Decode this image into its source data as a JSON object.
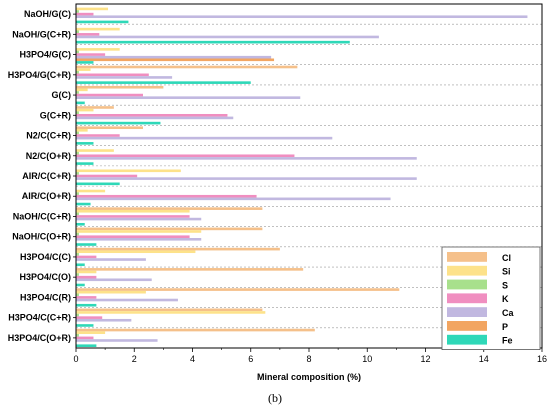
{
  "chart_data": {
    "type": "bar",
    "orientation": "horizontal",
    "xlabel": "Mineral composition (%)",
    "caption": "(b)",
    "xlim": [
      0,
      16
    ],
    "xticks": [
      0,
      2,
      4,
      6,
      8,
      10,
      12,
      14,
      16
    ],
    "grid": "horizontal-dashed",
    "legend_position": "bottom-right",
    "categories": [
      "NaOH/G(C)",
      "NaOH/G(C+R)",
      "H3PO4/G(C)",
      "H3PO4/G(C+R)",
      "G(C)",
      "G(C+R)",
      "N2/C(C+R)",
      "N2/C(O+R)",
      "AIR/C(C+R)",
      "AIR/C(O+R)",
      "NaOH/C(C+R)",
      "NaOH/C(O+R)",
      "H3PO4/C(C)",
      "H3PO4/C(O)",
      "H3PO4/C(R)",
      "H3PO4/C(C+R)",
      "H3PO4/C(O+R)"
    ],
    "series": [
      {
        "name": "Cl",
        "color": "#f5c08a",
        "values": [
          0.0,
          0.0,
          0.0,
          7.6,
          3.0,
          1.3,
          2.3,
          0.0,
          0.0,
          0.0,
          6.4,
          6.4,
          7.0,
          7.8,
          11.1,
          6.4,
          8.2
        ]
      },
      {
        "name": "Si",
        "color": "#fde28a",
        "values": [
          1.1,
          1.5,
          1.5,
          0.5,
          0.4,
          0.6,
          0.4,
          1.3,
          3.6,
          1.0,
          3.9,
          4.3,
          4.1,
          0.7,
          2.4,
          6.5,
          1.0
        ]
      },
      {
        "name": "S",
        "color": "#a8e08c",
        "values": [
          0.1,
          0.1,
          0.1,
          0.1,
          0.1,
          0.1,
          0.1,
          0.1,
          0.1,
          0.1,
          0.1,
          0.1,
          0.1,
          0.1,
          0.1,
          0.1,
          0.1
        ]
      },
      {
        "name": "K",
        "color": "#f08ec0",
        "values": [
          0.6,
          0.8,
          1.0,
          2.5,
          2.3,
          5.2,
          1.5,
          7.5,
          2.1,
          6.2,
          3.9,
          3.9,
          0.7,
          0.7,
          0.7,
          0.9,
          0.6
        ]
      },
      {
        "name": "Ca",
        "color": "#c1b8e0",
        "values": [
          15.5,
          10.4,
          6.7,
          3.3,
          7.7,
          5.4,
          8.8,
          11.7,
          11.7,
          10.8,
          4.3,
          4.3,
          2.4,
          2.6,
          3.5,
          1.9,
          2.8
        ]
      },
      {
        "name": "P",
        "color": "#f2a561",
        "values": [
          0.0,
          0.0,
          6.8,
          0.0,
          0.0,
          0.0,
          0.0,
          0.0,
          0.0,
          0.0,
          0.0,
          0.0,
          0.0,
          0.0,
          0.0,
          0.0,
          0.0
        ]
      },
      {
        "name": "Fe",
        "color": "#2fd8b8",
        "values": [
          1.8,
          9.4,
          0.6,
          6.0,
          0.3,
          2.9,
          0.6,
          0.6,
          1.5,
          0.5,
          0.3,
          0.7,
          0.3,
          0.3,
          0.7,
          0.6,
          0.7
        ]
      }
    ]
  }
}
